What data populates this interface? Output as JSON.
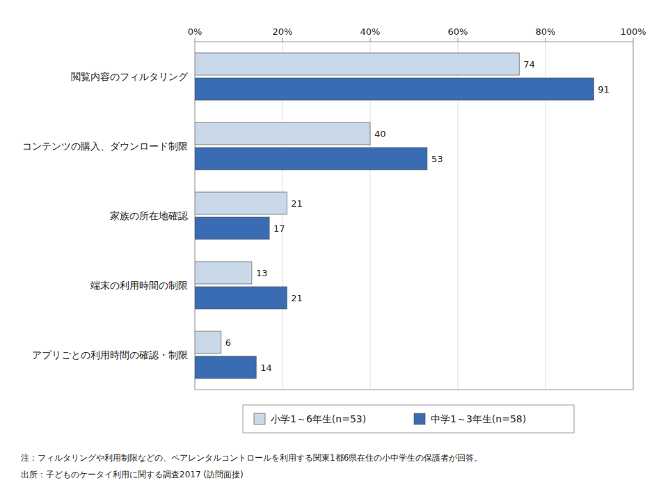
{
  "chart_data": {
    "type": "bar",
    "orientation": "horizontal",
    "categories": [
      "閲覧内容のフィルタリング",
      "コンテンツの購入、ダウンロード制限",
      "家族の所在地確認",
      "端末の利用時間の制限",
      "アプリごとの利用時間の確認・制限"
    ],
    "series": [
      {
        "name": "小学1～6年生(n=53)",
        "color": "#c9d9ea",
        "values": [
          74,
          40,
          21,
          13,
          6
        ]
      },
      {
        "name": "中学1～3年生(n=58)",
        "color": "#3a6cb4",
        "values": [
          91,
          53,
          17,
          21,
          14
        ]
      }
    ],
    "xlim": [
      0,
      100
    ],
    "xticks": [
      {
        "value": 0,
        "label": "0%"
      },
      {
        "value": 20,
        "label": "20%"
      },
      {
        "value": 40,
        "label": "40%"
      },
      {
        "value": 60,
        "label": "60%"
      },
      {
        "value": 80,
        "label": "80%"
      },
      {
        "value": 100,
        "label": "100%"
      }
    ],
    "grid": true,
    "legend": "bottom",
    "data_labels": true,
    "annotations": [
      "注：フィルタリングや利用制限などの、ペアレンタルコントロールを利用する関東1都6県在住の小中学生の保護者が回答。",
      "出所：子どものケータイ利用に関する調査2017 (訪問面接)"
    ]
  }
}
